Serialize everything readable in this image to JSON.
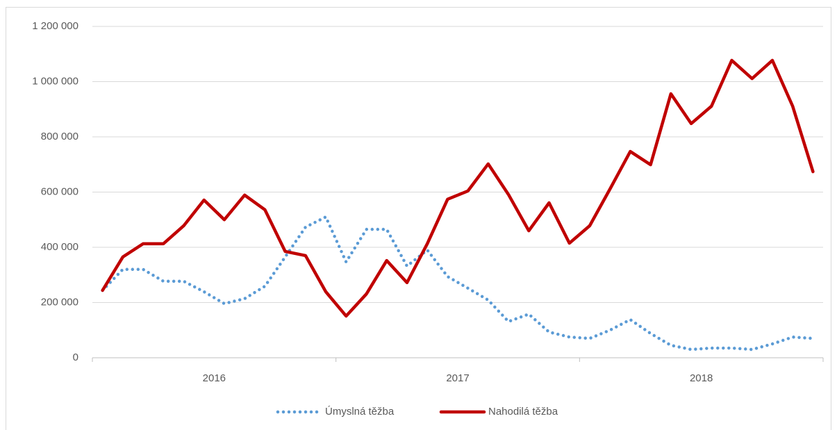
{
  "chart_data": {
    "type": "line",
    "categories": [
      null,
      null,
      null,
      null,
      null,
      null,
      null,
      null,
      null,
      null,
      null,
      null,
      null,
      null,
      null,
      null,
      null,
      null,
      null,
      null,
      null,
      null,
      null,
      null,
      null,
      null,
      null,
      null,
      null,
      null,
      null,
      null,
      null,
      null,
      null,
      null
    ],
    "category_groups": [
      "2016",
      "2017",
      "2018"
    ],
    "series": [
      {
        "name": "Úmyslná těžba",
        "color": "#5b9bd5",
        "dash": "dotted",
        "values": [
          244000,
          320000,
          320000,
          277000,
          277000,
          239000,
          196000,
          214000,
          259000,
          365000,
          473000,
          510000,
          347000,
          465000,
          465000,
          332000,
          390000,
          294000,
          252000,
          209000,
          131000,
          158000,
          93000,
          75000,
          70000,
          100000,
          138000,
          88000,
          45000,
          30000,
          35000,
          35000,
          30000,
          50000,
          75000,
          70000
        ]
      },
      {
        "name": "Nahodilá těžba",
        "color": "#c00000",
        "dash": "solid",
        "values": [
          244000,
          365000,
          413000,
          413000,
          478000,
          571000,
          500000,
          589000,
          536000,
          385000,
          370000,
          239000,
          151000,
          231000,
          352000,
          272000,
          413000,
          574000,
          604000,
          702000,
          591000,
          460000,
          561000,
          415000,
          478000,
          611000,
          747000,
          699000,
          956000,
          848000,
          911000,
          1077000,
          1011000,
          1077000,
          911000,
          674000
        ]
      }
    ],
    "ylim": [
      0,
      1200000
    ],
    "yticks": [
      0,
      {
        "value": 200000,
        "label": "200 000"
      },
      {
        "value": 400000,
        "label": "400 000"
      },
      {
        "value": 600000,
        "label": "600 000"
      },
      {
        "value": 800000,
        "label": "800 000"
      },
      {
        "value": 1000000,
        "label": "1 000 000"
      },
      {
        "value": 1200000,
        "label": "1 200 000"
      }
    ],
    "grid": true,
    "legend": "bottom"
  }
}
